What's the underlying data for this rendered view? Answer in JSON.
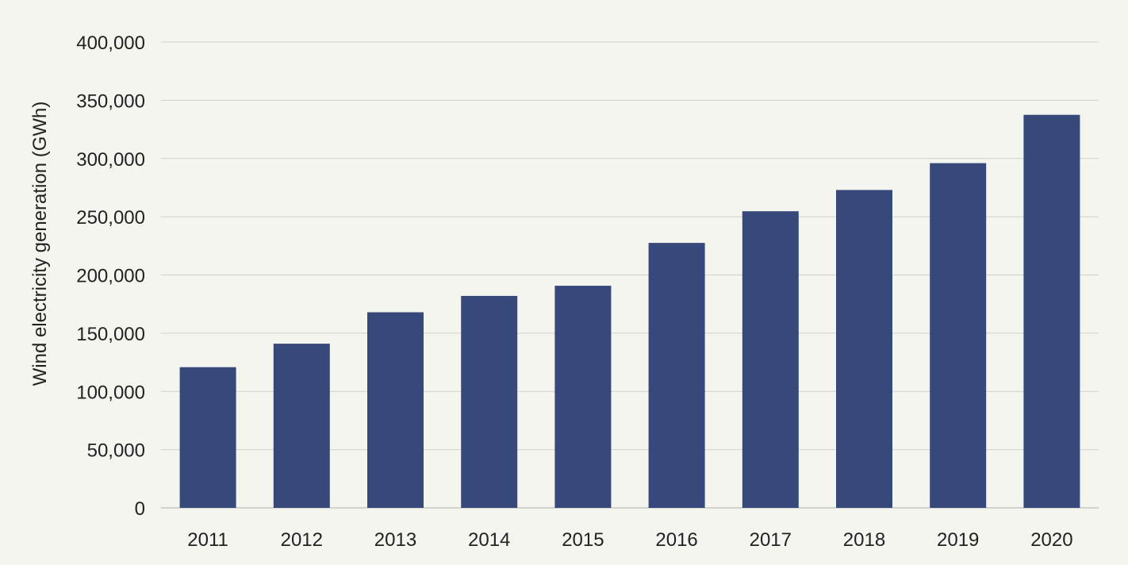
{
  "chart_data": {
    "type": "bar",
    "categories": [
      "2011",
      "2012",
      "2013",
      "2014",
      "2015",
      "2016",
      "2017",
      "2018",
      "2019",
      "2020"
    ],
    "values": [
      120800,
      141000,
      168000,
      182000,
      190700,
      227500,
      254700,
      273000,
      296000,
      337500
    ],
    "title": "",
    "xlabel": "",
    "ylabel": "Wind electricity generation (GWh)",
    "ylim": [
      0,
      400000
    ],
    "yticks": [
      0,
      50000,
      100000,
      150000,
      200000,
      250000,
      300000,
      350000,
      400000
    ],
    "ytick_labels": [
      "0",
      "50,000",
      "100,000",
      "150,000",
      "200,000",
      "250,000",
      "300,000",
      "350,000",
      "400,000"
    ],
    "grid": true,
    "legend": "none",
    "bar_color": "#37487b"
  },
  "colors": {
    "background": "#f5f5f0",
    "gridline": "#cfcfcf",
    "baseline": "#b0b0b0",
    "text": "#222222"
  }
}
